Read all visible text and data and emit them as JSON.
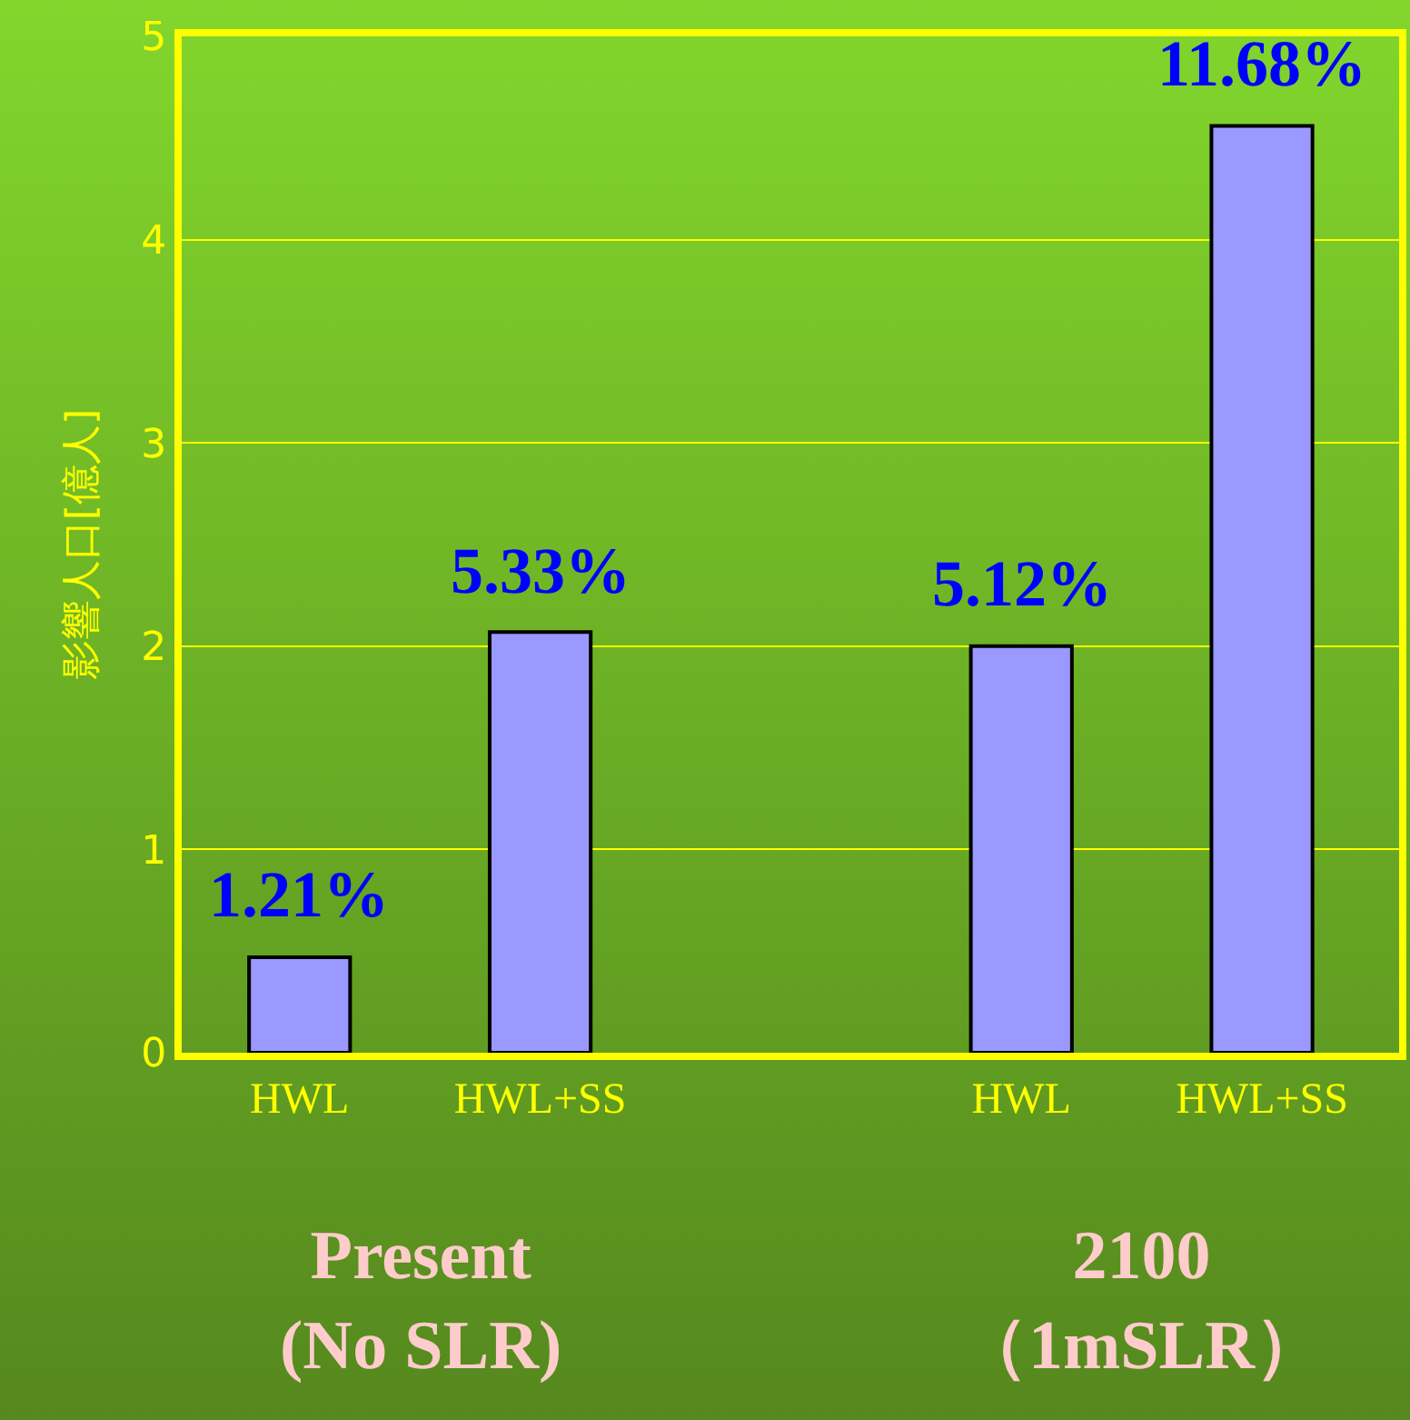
{
  "chart_data": {
    "type": "bar",
    "ylabel": "影響人口[億人]",
    "categories": [
      "HWL",
      "HWL+SS",
      null,
      "HWL",
      "HWL+SS"
    ],
    "values": [
      0.47,
      2.07,
      null,
      2.0,
      4.56
    ],
    "color": "#9999ff",
    "ylim": [
      0,
      5
    ],
    "yticks": [
      0,
      1,
      2,
      3,
      4,
      5
    ],
    "grid": "y",
    "annotations": [
      "1.21%",
      "5.33%",
      "5.12%",
      "11.68%",
      "Present\n(No SLR)",
      "2100\n（1mSLR）"
    ]
  }
}
